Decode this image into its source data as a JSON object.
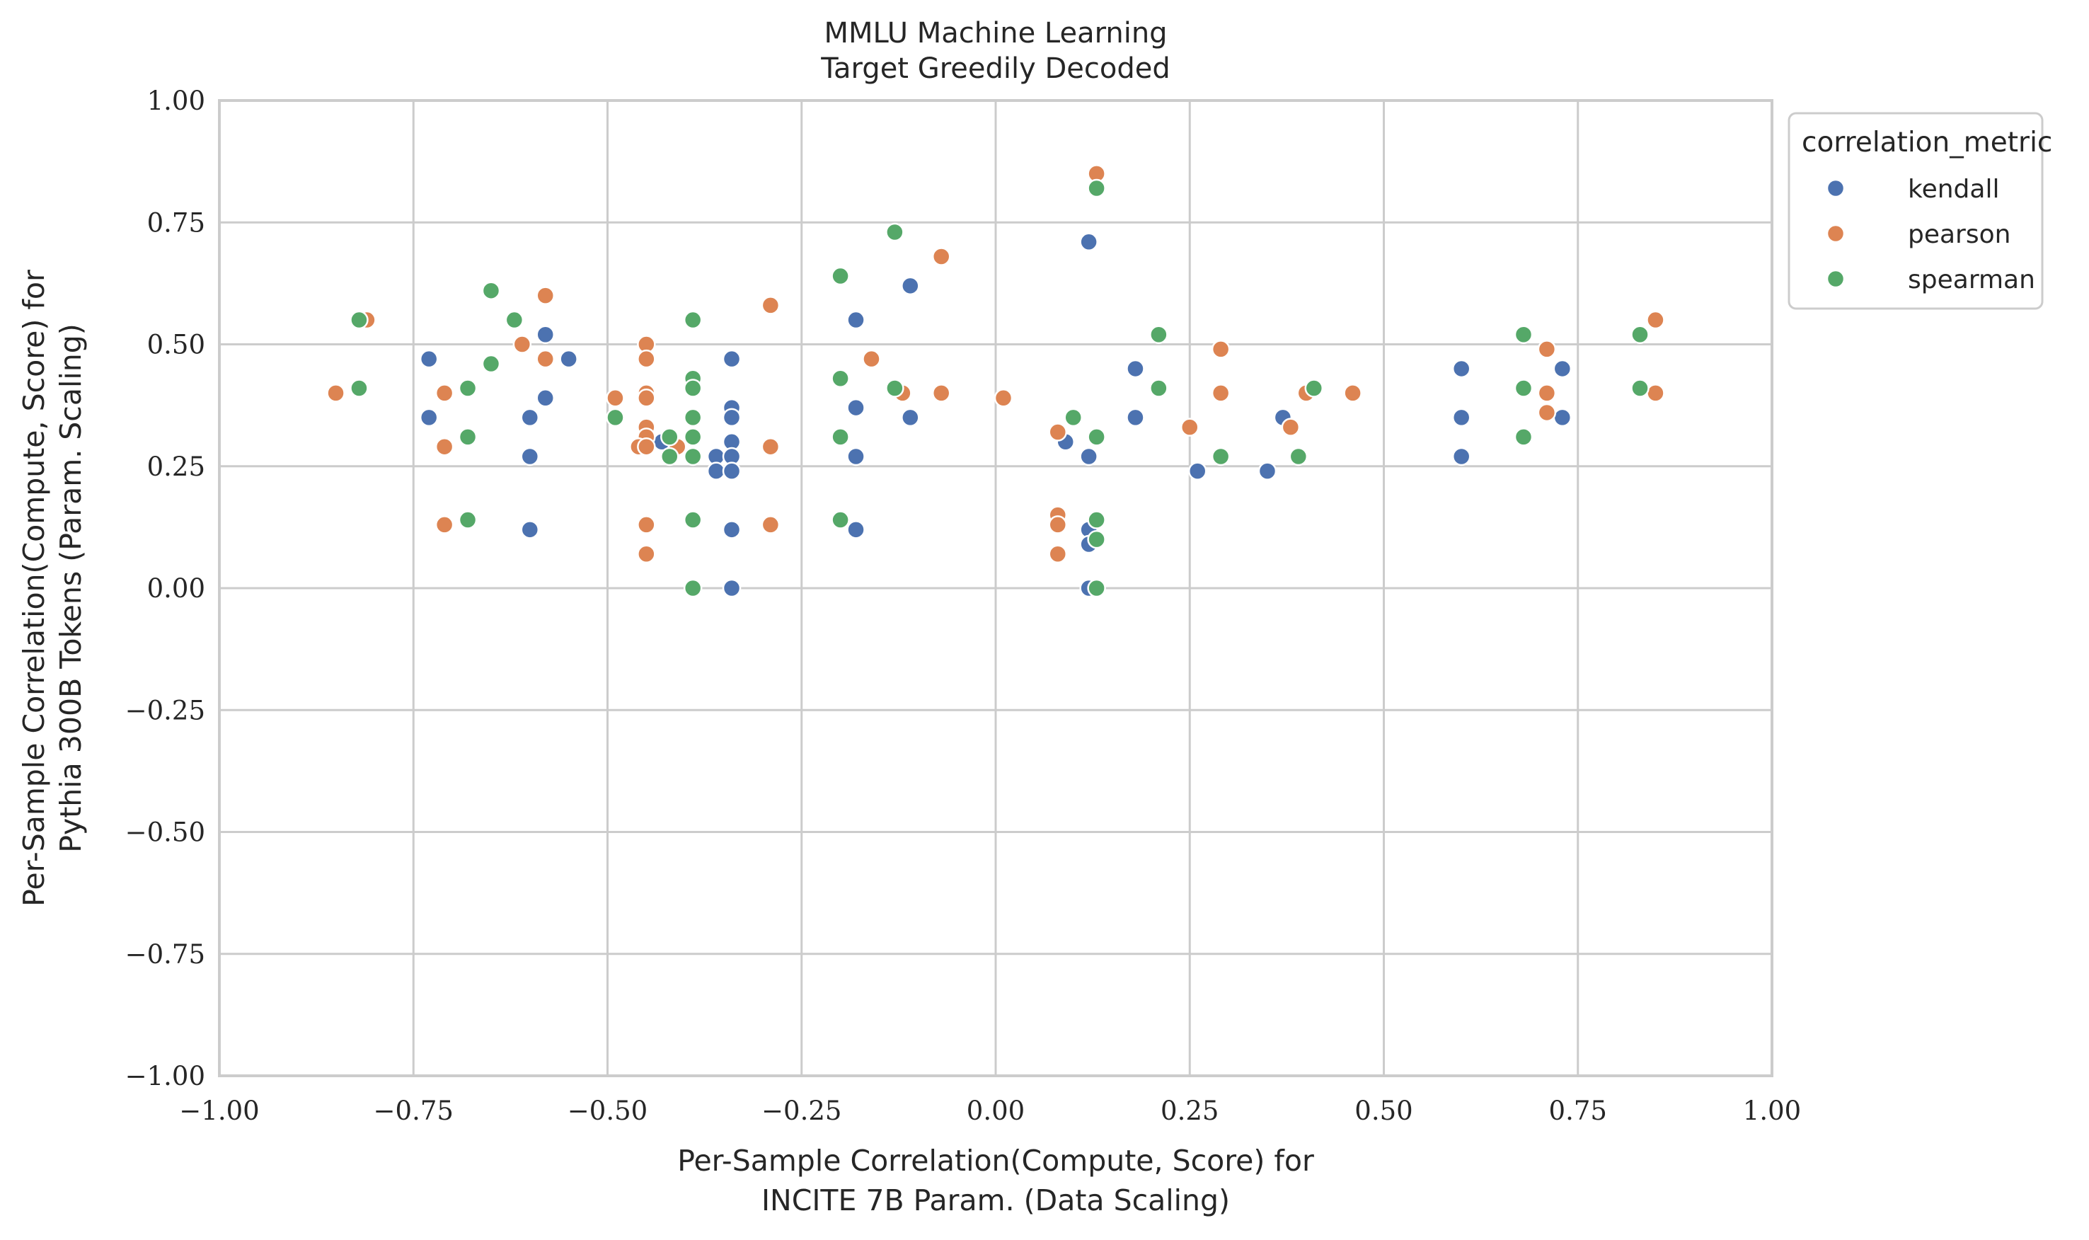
{
  "chart_data": {
    "type": "scatter",
    "title": [
      "MMLU Machine Learning",
      "Target Greedily Decoded"
    ],
    "xlabel": [
      "Per-Sample Correlation(Compute, Score) for",
      "INCITE 7B Param. (Data Scaling)"
    ],
    "ylabel": [
      "Per-Sample Correlation(Compute, Score) for",
      "Pythia 300B Tokens (Param. Scaling)"
    ],
    "xlim": [
      -1.0,
      1.0
    ],
    "ylim": [
      -1.0,
      1.0
    ],
    "xticks": [
      -1.0,
      -0.75,
      -0.5,
      -0.25,
      0.0,
      0.25,
      0.5,
      0.75,
      1.0
    ],
    "yticks": [
      -1.0,
      -0.75,
      -0.5,
      -0.25,
      0.0,
      0.25,
      0.5,
      0.75,
      1.0
    ],
    "xtick_labels": [
      "−1.00",
      "−0.75",
      "−0.50",
      "−0.25",
      "0.00",
      "0.25",
      "0.50",
      "0.75",
      "1.00"
    ],
    "ytick_labels": [
      "−1.00",
      "−0.75",
      "−0.50",
      "−0.25",
      "0.00",
      "0.25",
      "0.50",
      "0.75",
      "1.00"
    ],
    "grid": true,
    "legend": {
      "title": "correlation_metric",
      "placement": "outside-top-right"
    },
    "series": [
      {
        "name": "kendall",
        "color": "#4c72b0",
        "points": [
          [
            -0.73,
            0.47
          ],
          [
            -0.73,
            0.35
          ],
          [
            -0.6,
            0.35
          ],
          [
            -0.6,
            0.27
          ],
          [
            -0.6,
            0.12
          ],
          [
            -0.58,
            0.52
          ],
          [
            -0.58,
            0.39
          ],
          [
            -0.55,
            0.47
          ],
          [
            -0.43,
            0.3
          ],
          [
            -0.36,
            0.27
          ],
          [
            -0.36,
            0.24
          ],
          [
            -0.34,
            0.47
          ],
          [
            -0.34,
            0.37
          ],
          [
            -0.34,
            0.35
          ],
          [
            -0.34,
            0.3
          ],
          [
            -0.34,
            0.27
          ],
          [
            -0.34,
            0.24
          ],
          [
            -0.34,
            0.12
          ],
          [
            -0.34,
            0.0
          ],
          [
            -0.18,
            0.55
          ],
          [
            -0.18,
            0.37
          ],
          [
            -0.18,
            0.27
          ],
          [
            -0.18,
            0.12
          ],
          [
            -0.11,
            0.62
          ],
          [
            -0.11,
            0.35
          ],
          [
            0.09,
            0.3
          ],
          [
            0.12,
            0.71
          ],
          [
            0.12,
            0.27
          ],
          [
            0.12,
            0.12
          ],
          [
            0.12,
            0.09
          ],
          [
            0.12,
            0.0
          ],
          [
            0.18,
            0.45
          ],
          [
            0.18,
            0.35
          ],
          [
            0.26,
            0.24
          ],
          [
            0.35,
            0.24
          ],
          [
            0.37,
            0.35
          ],
          [
            0.6,
            0.45
          ],
          [
            0.6,
            0.35
          ],
          [
            0.6,
            0.27
          ],
          [
            0.73,
            0.45
          ],
          [
            0.73,
            0.35
          ]
        ]
      },
      {
        "name": "pearson",
        "color": "#dd8452",
        "points": [
          [
            -0.85,
            0.4
          ],
          [
            -0.81,
            0.55
          ],
          [
            -0.71,
            0.4
          ],
          [
            -0.71,
            0.29
          ],
          [
            -0.71,
            0.13
          ],
          [
            -0.61,
            0.5
          ],
          [
            -0.58,
            0.6
          ],
          [
            -0.58,
            0.47
          ],
          [
            -0.49,
            0.39
          ],
          [
            -0.45,
            0.5
          ],
          [
            -0.45,
            0.47
          ],
          [
            -0.45,
            0.4
          ],
          [
            -0.45,
            0.39
          ],
          [
            -0.45,
            0.33
          ],
          [
            -0.45,
            0.31
          ],
          [
            -0.46,
            0.29
          ],
          [
            -0.45,
            0.29
          ],
          [
            -0.45,
            0.13
          ],
          [
            -0.45,
            0.07
          ],
          [
            -0.41,
            0.29
          ],
          [
            -0.29,
            0.58
          ],
          [
            -0.29,
            0.29
          ],
          [
            -0.29,
            0.13
          ],
          [
            -0.16,
            0.47
          ],
          [
            -0.12,
            0.4
          ],
          [
            -0.07,
            0.68
          ],
          [
            -0.07,
            0.4
          ],
          [
            0.01,
            0.39
          ],
          [
            0.08,
            0.32
          ],
          [
            0.08,
            0.15
          ],
          [
            0.08,
            0.13
          ],
          [
            0.08,
            0.07
          ],
          [
            0.13,
            0.85
          ],
          [
            0.25,
            0.33
          ],
          [
            0.29,
            0.49
          ],
          [
            0.29,
            0.4
          ],
          [
            0.38,
            0.33
          ],
          [
            0.4,
            0.4
          ],
          [
            0.46,
            0.4
          ],
          [
            0.71,
            0.49
          ],
          [
            0.71,
            0.4
          ],
          [
            0.71,
            0.36
          ],
          [
            0.85,
            0.55
          ],
          [
            0.85,
            0.4
          ]
        ]
      },
      {
        "name": "spearman",
        "color": "#55a868",
        "points": [
          [
            -0.82,
            0.55
          ],
          [
            -0.82,
            0.41
          ],
          [
            -0.68,
            0.41
          ],
          [
            -0.68,
            0.31
          ],
          [
            -0.68,
            0.14
          ],
          [
            -0.65,
            0.61
          ],
          [
            -0.65,
            0.46
          ],
          [
            -0.62,
            0.55
          ],
          [
            -0.49,
            0.35
          ],
          [
            -0.42,
            0.31
          ],
          [
            -0.42,
            0.27
          ],
          [
            -0.39,
            0.55
          ],
          [
            -0.39,
            0.43
          ],
          [
            -0.39,
            0.41
          ],
          [
            -0.39,
            0.35
          ],
          [
            -0.39,
            0.31
          ],
          [
            -0.39,
            0.27
          ],
          [
            -0.39,
            0.14
          ],
          [
            -0.39,
            0.0
          ],
          [
            -0.2,
            0.64
          ],
          [
            -0.2,
            0.43
          ],
          [
            -0.2,
            0.31
          ],
          [
            -0.2,
            0.14
          ],
          [
            -0.13,
            0.73
          ],
          [
            -0.13,
            0.41
          ],
          [
            0.1,
            0.35
          ],
          [
            0.13,
            0.82
          ],
          [
            0.13,
            0.31
          ],
          [
            0.13,
            0.14
          ],
          [
            0.13,
            0.1
          ],
          [
            0.13,
            0.0
          ],
          [
            0.21,
            0.52
          ],
          [
            0.21,
            0.41
          ],
          [
            0.29,
            0.27
          ],
          [
            0.39,
            0.27
          ],
          [
            0.41,
            0.41
          ],
          [
            0.68,
            0.52
          ],
          [
            0.68,
            0.41
          ],
          [
            0.68,
            0.31
          ],
          [
            0.83,
            0.52
          ],
          [
            0.83,
            0.41
          ]
        ]
      }
    ]
  }
}
